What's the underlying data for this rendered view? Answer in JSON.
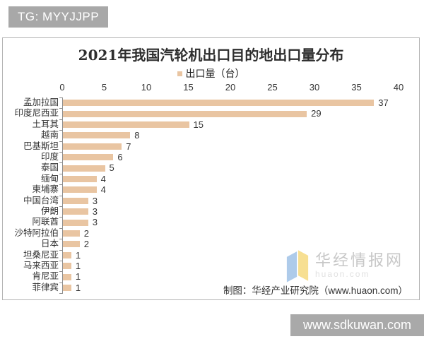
{
  "page": {
    "badge": "TG: MYYJJPP",
    "bottom_bar": "www.sdkuwan.com"
  },
  "chart": {
    "legend_label": "出口量（台）",
    "footer": "制图：华经产业研究院（www.huaon.com）",
    "watermark": {
      "text": "华经情报网",
      "subtext": "huaon.com"
    },
    "colors": {
      "bar": "#e9c5a2",
      "axis": "#8e8e8e",
      "text": "#333333",
      "badge_bg": "#a8a8a8",
      "watermark_text": "#c7c7c7",
      "logo_blue": "#aecbea",
      "logo_yellow": "#f7df92"
    }
  },
  "chart_data": {
    "type": "bar",
    "orientation": "horizontal",
    "title": "2021年我国汽轮机出口目的地出口量分布",
    "legend": [
      "出口量（台）"
    ],
    "categories": [
      "孟加拉国",
      "印度尼西亚",
      "土耳其",
      "越南",
      "巴基斯坦",
      "印度",
      "泰国",
      "缅甸",
      "柬埔寨",
      "中国台湾",
      "伊朗",
      "阿联酋",
      "沙特阿拉伯",
      "日本",
      "坦桑尼亚",
      "马来西亚",
      "肯尼亚",
      "菲律宾"
    ],
    "values": [
      37,
      29,
      15,
      8,
      7,
      6,
      5,
      4,
      4,
      3,
      3,
      3,
      2,
      2,
      1,
      1,
      1,
      1
    ],
    "xlabel": "",
    "ylabel": "",
    "xlim": [
      0,
      40
    ],
    "xticks": [
      0,
      5,
      10,
      15,
      20,
      25,
      30,
      35,
      40
    ],
    "grid": false,
    "data_labels": true,
    "legend_position": "top",
    "bar_color": "#e9c5a2"
  }
}
